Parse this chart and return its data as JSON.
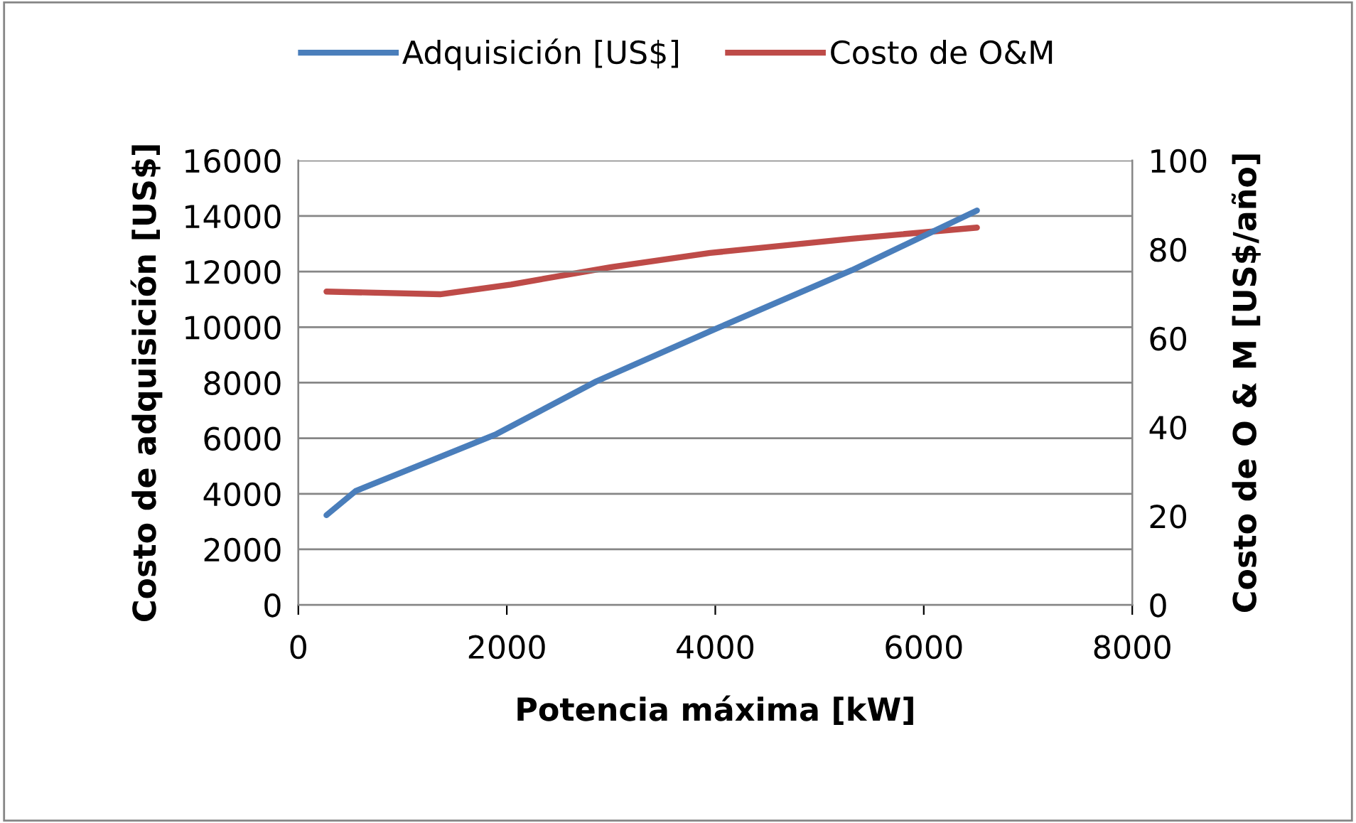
{
  "chart_data": {
    "type": "line",
    "xlabel": "Potencia máxima [kW]",
    "ylabel": "Costo de adquisición [US$]",
    "y2label": "Costo de O & M [US$/año]",
    "series": [
      {
        "name": "Adquisición [US$]",
        "color": "#4a7ebb",
        "x": [
          270,
          550,
          1230,
          1900,
          2860,
          3950,
          5310,
          6510
        ],
        "values": [
          3230,
          4100,
          5130,
          6150,
          8050,
          9850,
          12050,
          14200
        ]
      },
      {
        "name": "Costo de O&M",
        "color": "#be4b48",
        "axis": "y2",
        "x": [
          270,
          1360,
          2040,
          3000,
          3950,
          5310,
          6510
        ],
        "values": [
          70.5,
          69.9,
          72.1,
          76,
          79.2,
          82.4,
          84.9
        ]
      }
    ],
    "xlim": [
      0,
      8000
    ],
    "xticks": [
      0,
      2000,
      4000,
      6000,
      8000
    ],
    "ylim": [
      0,
      16000
    ],
    "yticks": [
      0,
      2000,
      4000,
      6000,
      8000,
      10000,
      12000,
      14000,
      16000
    ],
    "y2lim": [
      0,
      100
    ],
    "y2ticks": [
      0,
      20,
      40,
      60,
      80,
      100
    ],
    "grid": "y",
    "legend": "top",
    "marker": "none",
    "line_style": "solid"
  }
}
